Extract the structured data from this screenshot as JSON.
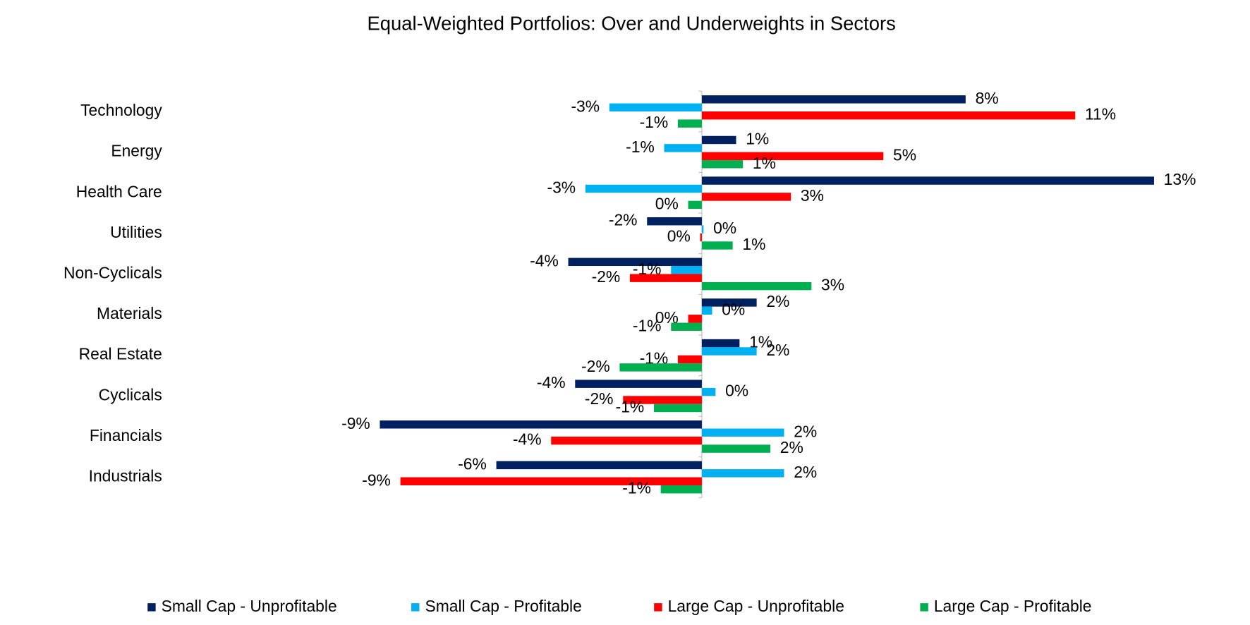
{
  "chart_data": {
    "type": "bar",
    "orientation": "horizontal",
    "title": "Equal-Weighted Portfolios: Over and Underweights in Sectors",
    "categories": [
      "Technology",
      "Energy",
      "Health Care",
      "Utilities",
      "Non-Cyclicals",
      "Materials",
      "Real Estate",
      "Cyclicals",
      "Financials",
      "Industrials"
    ],
    "series": [
      {
        "name": "Small Cap - Unprofitable",
        "color": "#002060",
        "values": [
          7.7,
          1.0,
          13.2,
          -1.6,
          -3.9,
          1.6,
          1.1,
          -3.7,
          -9.4,
          -6.0
        ],
        "value_labels": [
          "8%",
          "1%",
          "13%",
          "-2%",
          "-4%",
          "2%",
          "1%",
          "-4%",
          "-9%",
          "-6%"
        ]
      },
      {
        "name": "Small Cap - Profitable",
        "color": "#00b0f0",
        "values": [
          -2.7,
          -1.1,
          -3.4,
          0.05,
          -0.9,
          0.3,
          1.6,
          0.4,
          2.4,
          2.4
        ],
        "value_labels": [
          "-3%",
          "-1%",
          "-3%",
          "0%",
          "-1%",
          "0%",
          "2%",
          "0%",
          "2%",
          "2%"
        ]
      },
      {
        "name": "Large Cap - Unprofitable",
        "color": "#ff0000",
        "values": [
          10.9,
          5.3,
          2.6,
          -0.05,
          -2.1,
          -0.4,
          -0.7,
          -2.3,
          -4.4,
          -8.8
        ],
        "value_labels": [
          "11%",
          "5%",
          "3%",
          "0%",
          "-2%",
          "0%",
          "-1%",
          "-2%",
          "-4%",
          "-9%"
        ]
      },
      {
        "name": "Large Cap - Profitable",
        "color": "#00b050",
        "values": [
          -0.7,
          1.2,
          -0.4,
          0.9,
          3.2,
          -0.9,
          -2.4,
          -1.4,
          2.0,
          -1.2
        ],
        "value_labels": [
          "-1%",
          "1%",
          "0%",
          "1%",
          "3%",
          "-1%",
          "-2%",
          "-1%",
          "2%",
          "-1%"
        ]
      }
    ],
    "legend": "bottom"
  }
}
